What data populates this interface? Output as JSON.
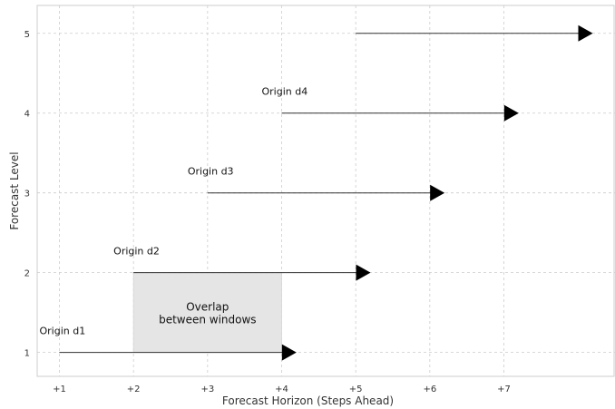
{
  "chart_data": {
    "type": "line",
    "title": "",
    "xlabel": "Forecast Horizon (Steps Ahead)",
    "ylabel": "Forecast Level",
    "x_tick_labels": [
      "+1",
      "+2",
      "+3",
      "+4",
      "+5",
      "+6",
      "+7"
    ],
    "x_ticks": [
      1,
      2,
      3,
      4,
      5,
      6,
      7
    ],
    "y_ticks": [
      1,
      2,
      3,
      4,
      5
    ],
    "xlim": [
      0.7,
      8.5
    ],
    "ylim": [
      0.7,
      5.35
    ],
    "grid": true,
    "series": [
      {
        "label": "Origin d1",
        "level": 1,
        "x_start": 1,
        "x_end": 4.2
      },
      {
        "label": "Origin d2",
        "level": 2,
        "x_start": 2,
        "x_end": 5.2
      },
      {
        "label": "Origin d3",
        "level": 3,
        "x_start": 3,
        "x_end": 6.2
      },
      {
        "label": "Origin d4",
        "level": 4,
        "x_start": 4,
        "x_end": 7.2
      },
      {
        "label": "",
        "level": 5,
        "x_start": 5,
        "x_end": 8.2
      }
    ],
    "annotations": [
      {
        "type": "shaded_region",
        "x_range": [
          2,
          4
        ],
        "y_range": [
          1,
          2
        ],
        "color": "#e5e5e5",
        "text_lines": [
          "Overlap",
          "between windows"
        ]
      }
    ],
    "colors": {
      "line": "#333333",
      "arrow": "#000000",
      "grid": "#cccccc",
      "axis": "#cccccc"
    }
  }
}
